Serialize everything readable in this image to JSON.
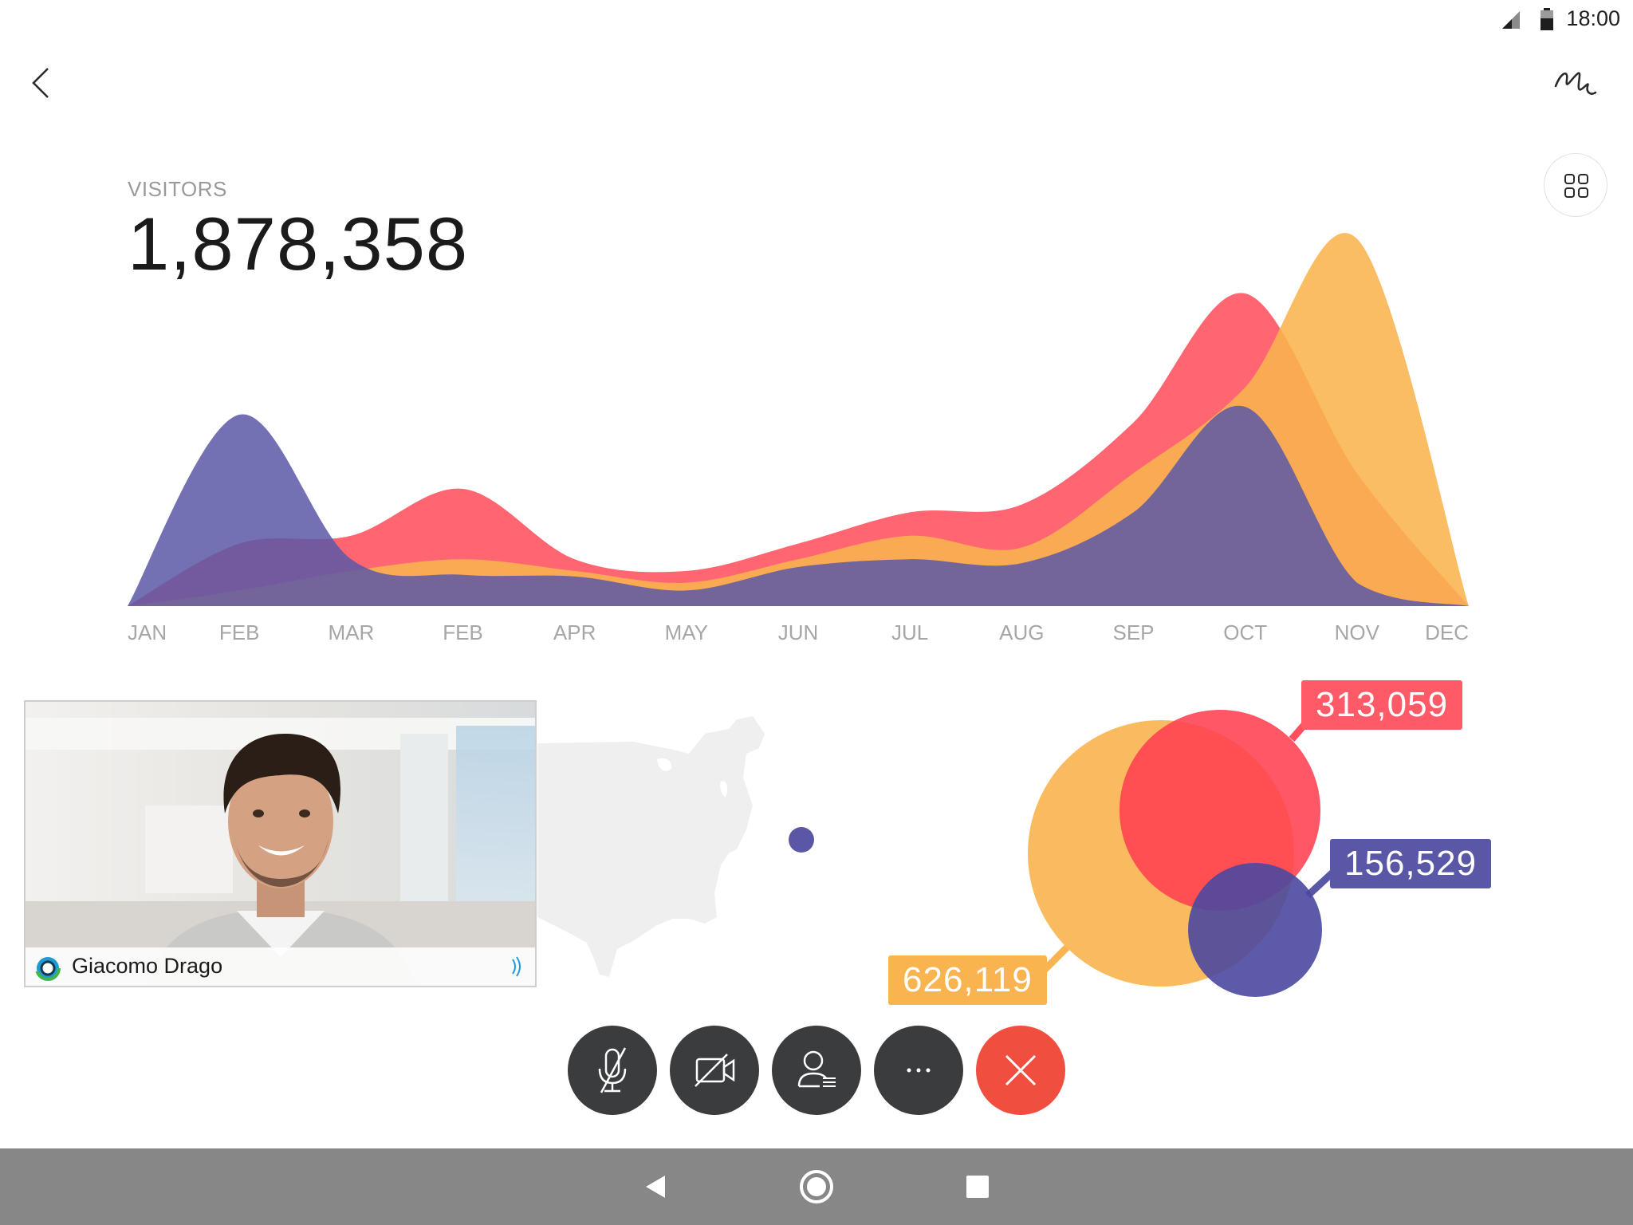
{
  "status_bar": {
    "time": "18:00"
  },
  "header": {
    "back_icon": "chevron-left-icon",
    "draw_icon": "squiggle-annotate-icon",
    "layout_icon": "grid-layout-icon"
  },
  "visitors": {
    "label": "VISITORS",
    "value": "1,878,358"
  },
  "chart_data": [
    {
      "type": "area",
      "title": "",
      "x": [
        "JAN",
        "FEB",
        "MAR",
        "FEB",
        "APR",
        "MAY",
        "JUN",
        "JUL",
        "AUG",
        "SEP",
        "OCT",
        "NOV",
        "DEC"
      ],
      "series": [
        {
          "color": "#5a58a6",
          "values": [
            0,
            245,
            60,
            40,
            38,
            20,
            50,
            60,
            55,
            120,
            255,
            30,
            0
          ]
        },
        {
          "color": "#ff5a67",
          "values": [
            0,
            80,
            90,
            150,
            60,
            45,
            80,
            120,
            130,
            235,
            400,
            170,
            0
          ]
        },
        {
          "color": "#f9b44f",
          "values": [
            0,
            20,
            45,
            60,
            45,
            30,
            60,
            90,
            75,
            170,
            280,
            470,
            0
          ]
        }
      ],
      "grid": false,
      "legend": "none"
    },
    {
      "type": "bubble",
      "points": [
        {
          "value": 626119,
          "color": "#f9b44f"
        },
        {
          "value": 313059,
          "color": "#ff4f5c"
        },
        {
          "value": 156529,
          "color": "#5a58a6"
        }
      ]
    }
  ],
  "bubbles": {
    "yellow_value": "626,119",
    "red_value": "313,059",
    "purple_value": "156,529"
  },
  "video": {
    "participant_name": "Giacomo Drago",
    "app_icon": "webex-logo-icon",
    "audio_icon": "audio-active-icon"
  },
  "map": {
    "marker": "location-dot"
  },
  "controls": [
    {
      "name": "mute",
      "icon": "microphone-muted-icon"
    },
    {
      "name": "video",
      "icon": "video-off-icon"
    },
    {
      "name": "participants",
      "icon": "participants-icon"
    },
    {
      "name": "more",
      "icon": "more-icon"
    },
    {
      "name": "end-call",
      "icon": "close-icon"
    }
  ],
  "nav": {
    "back": "back-triangle-icon",
    "home": "home-circle-icon",
    "recents": "recents-square-icon"
  }
}
